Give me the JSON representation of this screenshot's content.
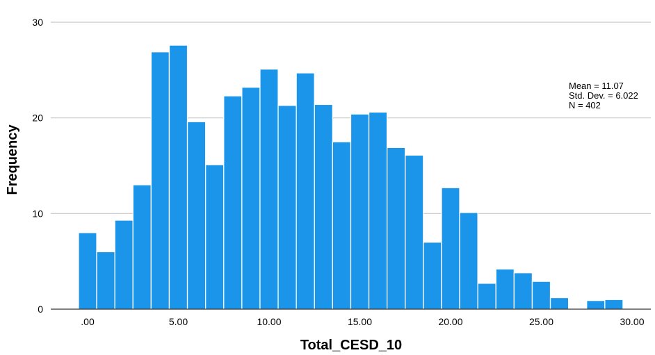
{
  "chart_data": {
    "type": "bar",
    "xlabel": "Total_CESD_10",
    "ylabel": "Frequency",
    "xlim": [
      -1,
      30.5
    ],
    "ylim": [
      0,
      30
    ],
    "y_ticks": [
      0,
      10,
      20,
      30
    ],
    "x_ticks": [
      0,
      5,
      10,
      15,
      20,
      25,
      30
    ],
    "x_tick_labels": [
      ".00",
      "5.00",
      "10.00",
      "15.00",
      "20.00",
      "25.00",
      "30.00"
    ],
    "grid": "horizontal",
    "bar_color": "#1a95e9",
    "bar_edge_color": "#ffffff",
    "bin_width": 1,
    "bins": [
      {
        "x": 0,
        "value": 8
      },
      {
        "x": 1,
        "value": 6
      },
      {
        "x": 2,
        "value": 9.3
      },
      {
        "x": 3,
        "value": 13
      },
      {
        "x": 4,
        "value": 26.9
      },
      {
        "x": 5,
        "value": 27.6
      },
      {
        "x": 6,
        "value": 19.6
      },
      {
        "x": 7,
        "value": 15.1
      },
      {
        "x": 8,
        "value": 22.3
      },
      {
        "x": 9,
        "value": 23.2
      },
      {
        "x": 10,
        "value": 25.1
      },
      {
        "x": 11,
        "value": 21.3
      },
      {
        "x": 12,
        "value": 24.7
      },
      {
        "x": 13,
        "value": 21.4
      },
      {
        "x": 14,
        "value": 17.5
      },
      {
        "x": 15,
        "value": 20.4
      },
      {
        "x": 16,
        "value": 20.6
      },
      {
        "x": 17,
        "value": 16.9
      },
      {
        "x": 18,
        "value": 16.1
      },
      {
        "x": 19,
        "value": 7
      },
      {
        "x": 20,
        "value": 12.7
      },
      {
        "x": 21,
        "value": 10.1
      },
      {
        "x": 22,
        "value": 2.7
      },
      {
        "x": 23,
        "value": 4.2
      },
      {
        "x": 24,
        "value": 3.8
      },
      {
        "x": 25,
        "value": 2.9
      },
      {
        "x": 26,
        "value": 1.2
      },
      {
        "x": 28,
        "value": 0.9
      },
      {
        "x": 29,
        "value": 1
      }
    ],
    "stats": {
      "mean": "Mean = 11.07",
      "std_dev": "Std. Dev. = 6.022",
      "n": "N = 402"
    }
  }
}
